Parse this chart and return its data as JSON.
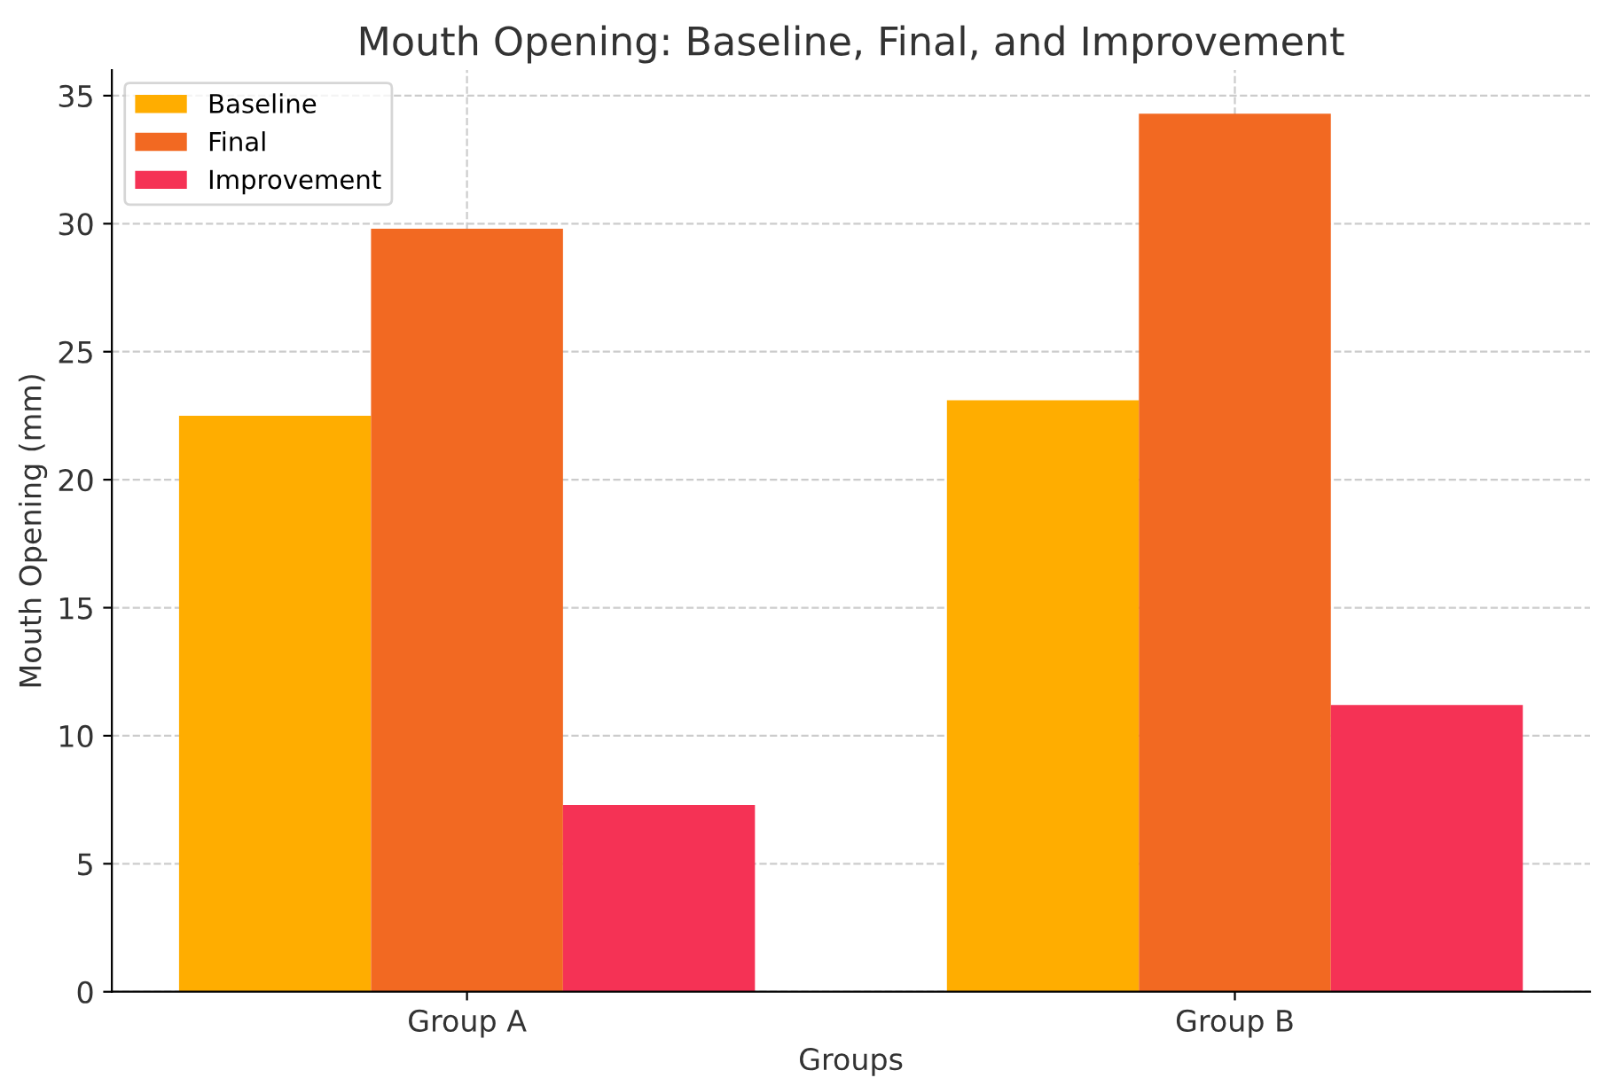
{
  "chart_data": {
    "type": "bar",
    "title": "Mouth Opening: Baseline, Final, and Improvement",
    "xlabel": "Groups",
    "ylabel": "Mouth Opening (mm)",
    "categories": [
      "Group A",
      "Group B"
    ],
    "series": [
      {
        "name": "Baseline",
        "color": "#ffad00",
        "values": [
          22.5,
          23.1
        ]
      },
      {
        "name": "Final",
        "color": "#f26922",
        "values": [
          29.8,
          34.3
        ]
      },
      {
        "name": "Improvement",
        "color": "#f53255",
        "values": [
          7.3,
          11.2
        ]
      }
    ],
    "ylim": [
      0,
      36
    ],
    "yticks": [
      0,
      5,
      10,
      15,
      20,
      25,
      30,
      35
    ],
    "grid": true,
    "legend": "top left"
  }
}
